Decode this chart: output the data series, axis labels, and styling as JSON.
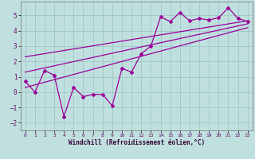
{
  "xlabel": "Windchill (Refroidissement éolien,°C)",
  "bg_color": "#c0e0e0",
  "grid_color": "#a0c8c8",
  "line_color": "#990099",
  "xlim": [
    -0.5,
    23.5
  ],
  "ylim": [
    -2.5,
    5.9
  ],
  "xticks": [
    0,
    1,
    2,
    3,
    4,
    5,
    6,
    7,
    8,
    9,
    10,
    11,
    12,
    13,
    14,
    15,
    16,
    17,
    18,
    19,
    20,
    21,
    22,
    23
  ],
  "yticks": [
    -2,
    -1,
    0,
    1,
    2,
    3,
    4,
    5
  ],
  "data_x": [
    0,
    1,
    2,
    3,
    4,
    5,
    6,
    7,
    8,
    9,
    10,
    11,
    12,
    13,
    14,
    15,
    16,
    17,
    18,
    19,
    20,
    21,
    22,
    23
  ],
  "data_y": [
    0.7,
    0.0,
    1.4,
    1.1,
    -1.6,
    0.3,
    -0.3,
    -0.15,
    -0.15,
    -0.9,
    1.55,
    1.3,
    2.5,
    3.0,
    4.9,
    4.6,
    5.2,
    4.65,
    4.8,
    4.7,
    4.85,
    5.5,
    4.8,
    4.6
  ],
  "reg_line1_x": [
    0,
    23
  ],
  "reg_line1_y": [
    1.3,
    4.45
  ],
  "reg_line2_x": [
    0,
    23
  ],
  "reg_line2_y": [
    0.3,
    4.2
  ],
  "reg_line3_x": [
    0,
    23
  ],
  "reg_line3_y": [
    2.3,
    4.65
  ]
}
